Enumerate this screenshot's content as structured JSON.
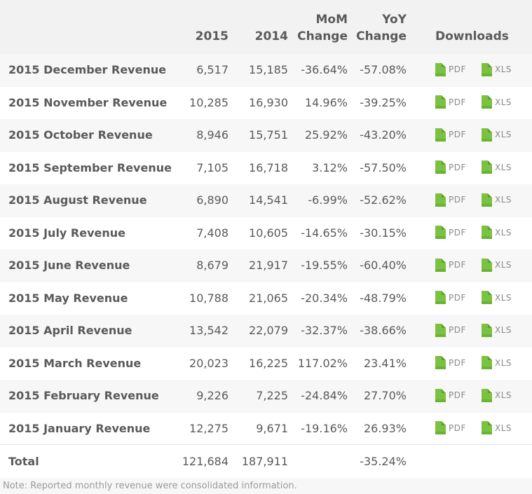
{
  "header": {
    "col_2015": "2015",
    "col_2014": "2014",
    "col_mom_line1": "MoM",
    "col_mom_line2": "Change",
    "col_yoy_line1": "YoY",
    "col_yoy_line2": "Change",
    "col_downloads": "Downloads"
  },
  "downloads": {
    "pdf_label": "PDF",
    "xls_label": "XLS",
    "icon": "file-icon",
    "icon_color": "#7cc242"
  },
  "rows": [
    {
      "name": "2015 December Revenue",
      "y2015": "6,517",
      "y2014": "15,185",
      "mom": "-36.64%",
      "yoy": "-57.08%"
    },
    {
      "name": "2015 November Revenue",
      "y2015": "10,285",
      "y2014": "16,930",
      "mom": "14.96%",
      "yoy": "-39.25%"
    },
    {
      "name": "2015 October Revenue",
      "y2015": "8,946",
      "y2014": "15,751",
      "mom": "25.92%",
      "yoy": "-43.20%"
    },
    {
      "name": "2015 September Revenue",
      "y2015": "7,105",
      "y2014": "16,718",
      "mom": "3.12%",
      "yoy": "-57.50%"
    },
    {
      "name": "2015 August Revenue",
      "y2015": "6,890",
      "y2014": "14,541",
      "mom": "-6.99%",
      "yoy": "-52.62%"
    },
    {
      "name": "2015 July Revenue",
      "y2015": "7,408",
      "y2014": "10,605",
      "mom": "-14.65%",
      "yoy": "-30.15%"
    },
    {
      "name": "2015 June Revenue",
      "y2015": "8,679",
      "y2014": "21,917",
      "mom": "-19.55%",
      "yoy": "-60.40%"
    },
    {
      "name": "2015 May Revenue",
      "y2015": "10,788",
      "y2014": "21,065",
      "mom": "-20.34%",
      "yoy": "-48.79%"
    },
    {
      "name": "2015 April Revenue",
      "y2015": "13,542",
      "y2014": "22,079",
      "mom": "-32.37%",
      "yoy": "-38.66%"
    },
    {
      "name": "2015 March Revenue",
      "y2015": "20,023",
      "y2014": "16,225",
      "mom": "117.02%",
      "yoy": "23.41%"
    },
    {
      "name": "2015 February Revenue",
      "y2015": "9,226",
      "y2014": "7,225",
      "mom": "-24.84%",
      "yoy": "27.70%"
    },
    {
      "name": "2015 January Revenue",
      "y2015": "12,275",
      "y2014": "9,671",
      "mom": "-19.16%",
      "yoy": "26.93%"
    }
  ],
  "total": {
    "label": "Total",
    "y2015": "121,684",
    "y2014": "187,911",
    "mom": "",
    "yoy": "-35.24%"
  },
  "note": "Note: Reported monthly revenue were consolidated information."
}
